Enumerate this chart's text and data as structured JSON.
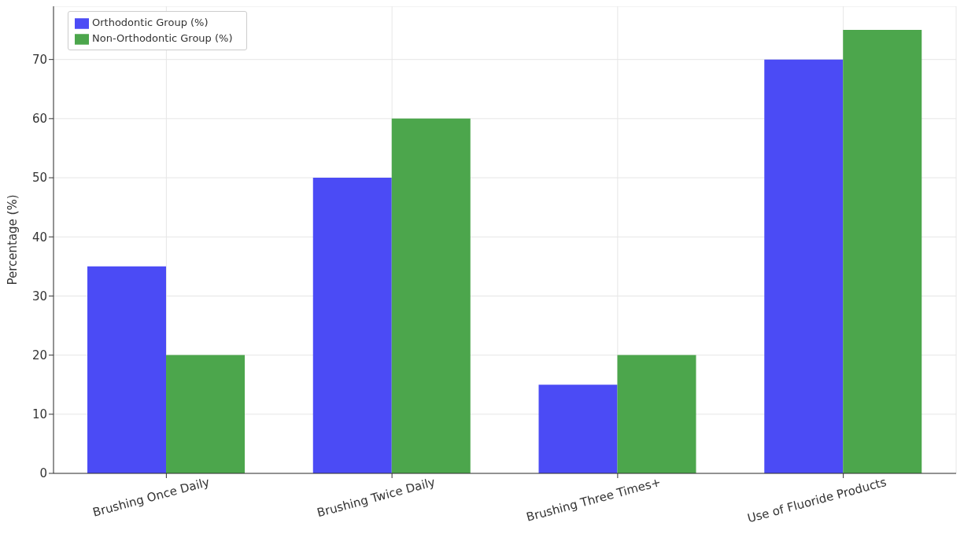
{
  "chart_data": {
    "type": "bar",
    "ylabel": "Percentage (%)",
    "categories": [
      "Brushing Once Daily",
      "Brushing Twice Daily",
      "Brushing Three Times+",
      "Use of Fluoride Products"
    ],
    "series": [
      {
        "name": "Orthodontic Group (%)",
        "color": "#4b4bf5",
        "values": [
          35,
          50,
          15,
          70
        ]
      },
      {
        "name": "Non-Orthodontic Group (%)",
        "color": "#4ca64c",
        "values": [
          20,
          60,
          20,
          75
        ]
      }
    ],
    "ylim": [
      0,
      79
    ],
    "yticks": [
      0,
      10,
      20,
      30,
      40,
      50,
      60,
      70
    ],
    "grid": true,
    "legend": "top left"
  }
}
